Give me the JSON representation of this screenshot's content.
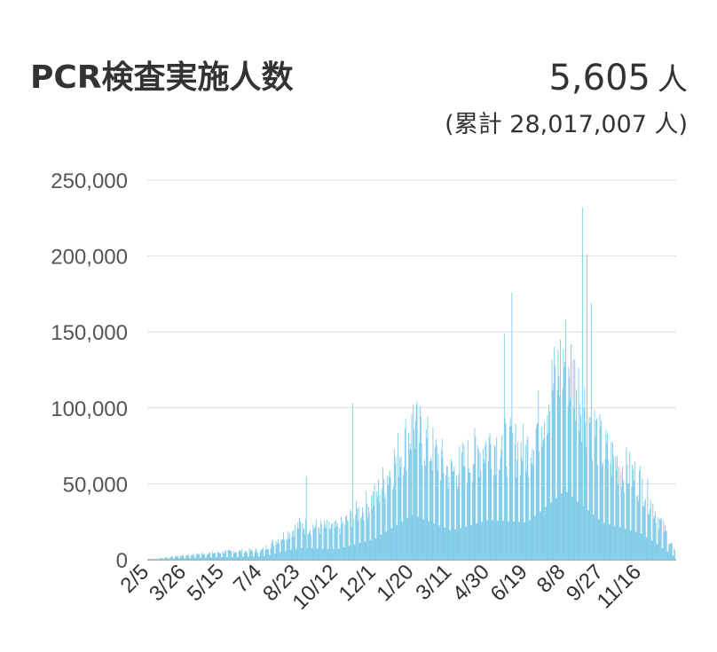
{
  "header": {
    "title": "PCR検査実施人数",
    "current_value": "5,605",
    "current_unit": "人",
    "cumulative_text": "(累計 28,017,007 人)"
  },
  "chart_data": {
    "type": "bar",
    "title": "PCR検査実施人数",
    "bar_color": "#7dcbe8",
    "ylim": [
      0,
      250000
    ],
    "y_ticks": [
      0,
      50000,
      100000,
      150000,
      200000,
      250000
    ],
    "y_tick_labels": [
      "0",
      "50,000",
      "100,000",
      "150,000",
      "200,000",
      "250,000"
    ],
    "x_tick_labels": [
      "2/5",
      "3/26",
      "5/15",
      "7/4",
      "8/23",
      "10/12",
      "12/1",
      "1/20",
      "3/11",
      "4/30",
      "6/19",
      "8/8",
      "9/27",
      "11/16"
    ],
    "grid": true,
    "series_anchor_points": [
      {
        "date": "2/5",
        "value": 0
      },
      {
        "date": "3/26",
        "value": 3000
      },
      {
        "date": "5/15",
        "value": 5000
      },
      {
        "date": "7/4",
        "value": 6000
      },
      {
        "date": "8/23",
        "value": 22000
      },
      {
        "date": "10/12",
        "value": 20000
      },
      {
        "date": "12/1",
        "value": 40000
      },
      {
        "date": "1/20",
        "value": 85000
      },
      {
        "date": "3/11",
        "value": 55000
      },
      {
        "date": "4/30",
        "value": 75000
      },
      {
        "date": "6/19",
        "value": 70000
      },
      {
        "date": "8/8",
        "value": 130000
      },
      {
        "date": "9/27",
        "value": 70000
      },
      {
        "date": "11/16",
        "value": 50000
      },
      {
        "date": "12/31",
        "value": 5605
      }
    ],
    "peaks": [
      {
        "date": "8/31",
        "value": 232000
      },
      {
        "date": "9/6",
        "value": 201000
      },
      {
        "date": "9/12",
        "value": 169000
      },
      {
        "date": "5/30",
        "value": 176000
      },
      {
        "date": "5/20",
        "value": 149000
      },
      {
        "date": "1/20",
        "value": 102000
      },
      {
        "date": "11/1",
        "value": 103000
      },
      {
        "date": "9/1",
        "value": 55000
      }
    ]
  }
}
